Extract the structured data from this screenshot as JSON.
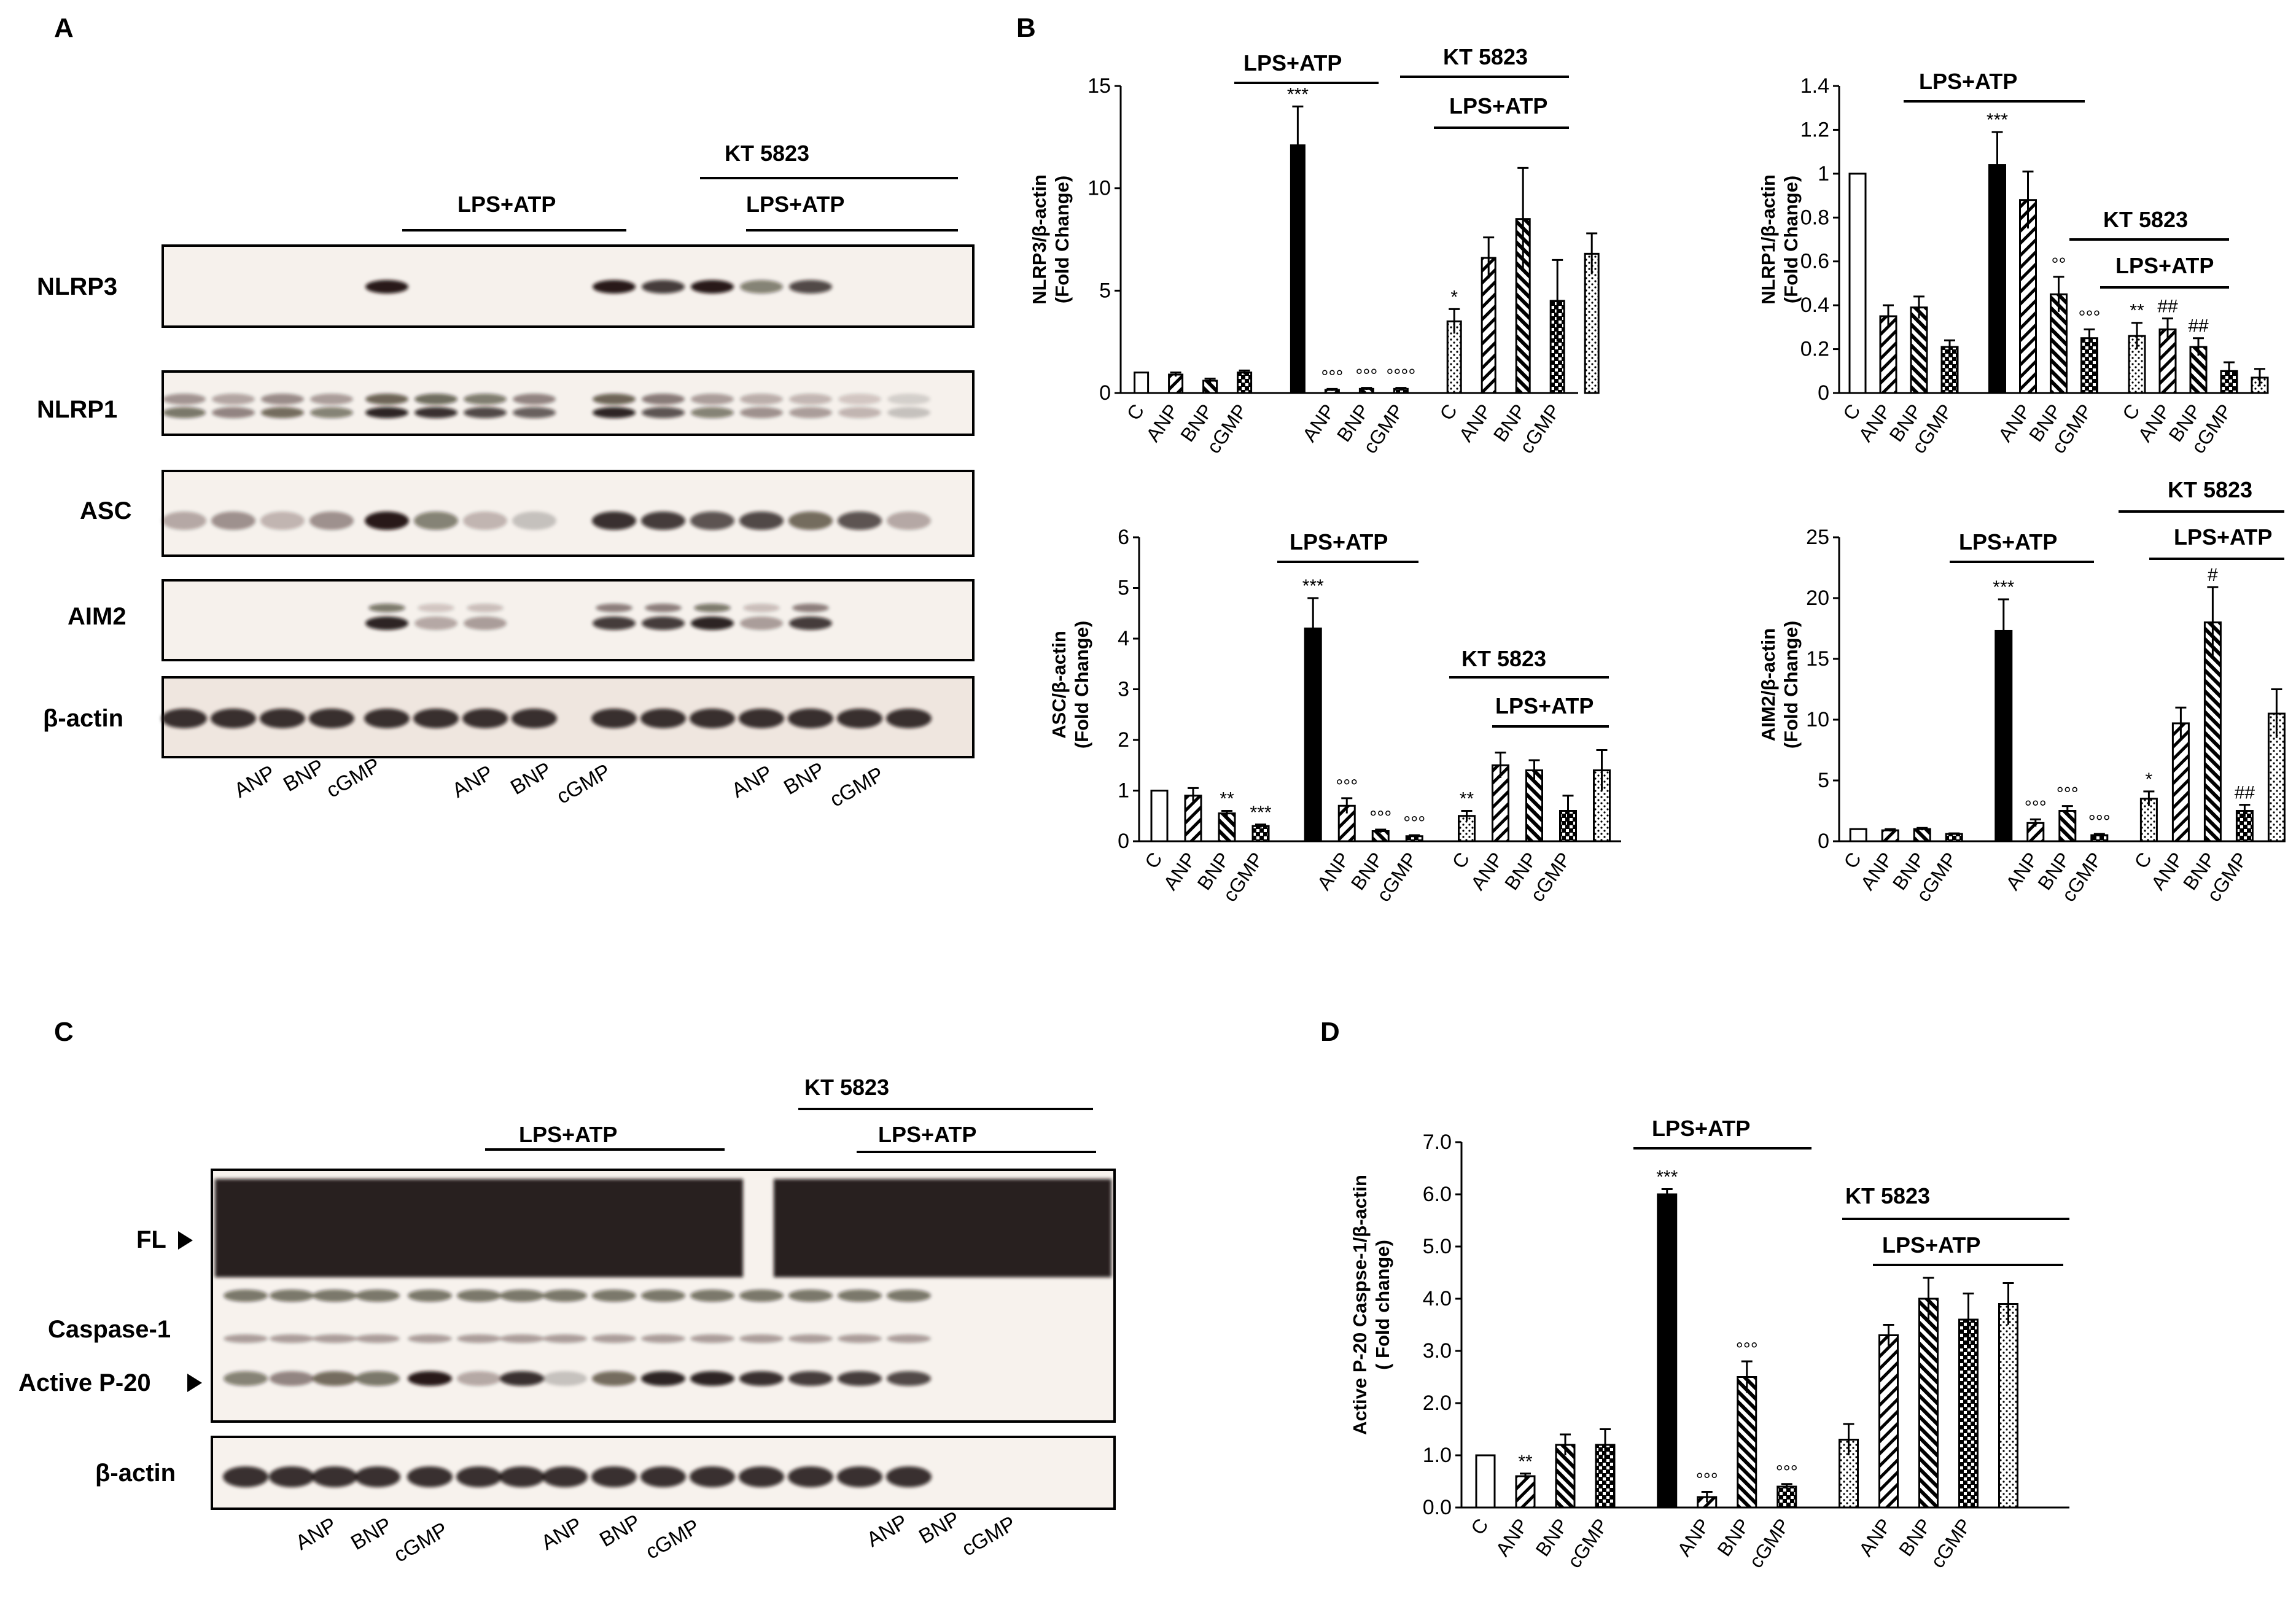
{
  "panels": {
    "A": "A",
    "B": "B",
    "C": "C",
    "D": "D"
  },
  "labels": {
    "lps_atp": "LPS+ATP",
    "kt5823": "KT 5823",
    "kt5823_wide": "KT 5823"
  },
  "blot_a": {
    "rows": [
      "NLRP3",
      "NLRP1",
      "ASC",
      "AIM2",
      "β-actin"
    ],
    "lanes": [
      "ANP",
      "BNP",
      "cGMP",
      "ANP",
      "BNP",
      "cGMP",
      "ANP",
      "BNP",
      "cGMP"
    ]
  },
  "blot_c": {
    "rows": [
      "FL",
      "Caspase-1",
      "Active P-20",
      "β-actin"
    ],
    "lanes": [
      "ANP",
      "BNP",
      "cGMP",
      "ANP",
      "BNP",
      "cGMP",
      "ANP",
      "BNP",
      "cGMP"
    ]
  },
  "chart_data": [
    {
      "type": "bar",
      "panel": "B",
      "ylabel_line1": "NLRP3/β-actin",
      "ylabel_line2": "(Fold Change)",
      "ylim": [
        0,
        15
      ],
      "yticks": [
        "0",
        "5",
        "10",
        "15"
      ],
      "categories": [
        "C",
        "ANP",
        "BNP",
        "cGMP",
        "",
        "ANP",
        "BNP",
        "cGMP",
        "C",
        "ANP",
        "BNP",
        "cGMP",
        ""
      ],
      "values": [
        1.0,
        0.9,
        0.6,
        1.0,
        12.1,
        0.15,
        0.2,
        0.2,
        3.5,
        6.6,
        8.5,
        4.5,
        6.8
      ],
      "errors": [
        0,
        0.1,
        0.1,
        0.1,
        1.9,
        0.05,
        0.05,
        0.05,
        0.6,
        1.0,
        2.5,
        2.0,
        1.0
      ],
      "sig": [
        "",
        "",
        "",
        "",
        "***",
        "°°°",
        "°°°",
        "°°°°",
        "*",
        "",
        "",
        "",
        ""
      ]
    },
    {
      "type": "bar",
      "panel": "B",
      "ylabel_line1": "NLRP1/β-actin",
      "ylabel_line2": "(Fold Change)",
      "ylim": [
        0,
        1.4
      ],
      "yticks": [
        "0",
        "0.2",
        "0.4",
        "0.6",
        "0.8",
        "1",
        "1.2",
        "1.4"
      ],
      "categories": [
        "C",
        "ANP",
        "BNP",
        "cGMP",
        "",
        "ANP",
        "BNP",
        "cGMP",
        "C",
        "ANP",
        "BNP",
        "cGMP",
        ""
      ],
      "values": [
        1.0,
        0.35,
        0.39,
        0.21,
        1.04,
        0.88,
        0.45,
        0.25,
        0.26,
        0.29,
        0.21,
        0.1,
        0.07
      ],
      "errors": [
        0,
        0.05,
        0.05,
        0.03,
        0.15,
        0.13,
        0.08,
        0.04,
        0.06,
        0.05,
        0.04,
        0.04,
        0.04
      ],
      "sig": [
        "",
        "",
        "",
        "",
        "***",
        "",
        "°°",
        "°°°",
        "**",
        "##",
        "##",
        "",
        ""
      ]
    },
    {
      "type": "bar",
      "panel": "B",
      "ylabel_line1": "ASC/β-actin",
      "ylabel_line2": "(Fold Change)",
      "ylim": [
        0,
        6
      ],
      "yticks": [
        "0",
        "1",
        "2",
        "3",
        "4",
        "5",
        "6"
      ],
      "categories": [
        "C",
        "ANP",
        "BNP",
        "cGMP",
        "",
        "ANP",
        "BNP",
        "cGMP",
        "C",
        "ANP",
        "BNP",
        "cGMP",
        ""
      ],
      "values": [
        1.0,
        0.9,
        0.55,
        0.3,
        4.2,
        0.7,
        0.2,
        0.1,
        0.5,
        1.5,
        1.4,
        0.6,
        1.4
      ],
      "errors": [
        0,
        0.15,
        0.05,
        0.03,
        0.6,
        0.15,
        0.03,
        0.02,
        0.1,
        0.25,
        0.2,
        0.3,
        0.4
      ],
      "sig": [
        "",
        "",
        "**",
        "***",
        "***",
        "°°°",
        "°°°",
        "°°°",
        "**",
        "",
        "",
        "",
        ""
      ]
    },
    {
      "type": "bar",
      "panel": "B",
      "ylabel_line1": "AIM2/β-actin",
      "ylabel_line2": "(Fold Change)",
      "ylim": [
        0,
        25
      ],
      "yticks": [
        "0",
        "5",
        "10",
        "15",
        "20",
        "25"
      ],
      "categories": [
        "C",
        "ANP",
        "BNP",
        "cGMP",
        "",
        "ANP",
        "BNP",
        "cGMP",
        "C",
        "ANP",
        "BNP",
        "cGMP",
        ""
      ],
      "values": [
        1.0,
        0.9,
        1.0,
        0.6,
        17.3,
        1.5,
        2.5,
        0.5,
        3.5,
        9.7,
        18.0,
        2.5,
        10.5
      ],
      "errors": [
        0,
        0.1,
        0.1,
        0.05,
        2.6,
        0.3,
        0.4,
        0.1,
        0.6,
        1.3,
        2.9,
        0.5,
        2.0
      ],
      "sig": [
        "",
        "",
        "",
        "",
        "***",
        "°°°",
        "°°°",
        "°°°",
        "*",
        "",
        "#",
        "##",
        ""
      ]
    },
    {
      "type": "bar",
      "panel": "D",
      "ylabel_line1": "Active P-20 Caspse-1/β-actin",
      "ylabel_line2": "( Fold change)",
      "ylim": [
        0,
        7
      ],
      "yticks": [
        "0.0",
        "1.0",
        "2.0",
        "3.0",
        "4.0",
        "5.0",
        "6.0",
        "7.0"
      ],
      "categories": [
        "C",
        "ANP",
        "BNP",
        "cGMP",
        "",
        "ANP",
        "BNP",
        "cGMP",
        "",
        "ANP",
        "BNP",
        "cGMP",
        ""
      ],
      "values": [
        1.0,
        0.6,
        1.2,
        1.2,
        6.0,
        0.2,
        2.5,
        0.4,
        1.3,
        3.3,
        4.0,
        3.6,
        3.9
      ],
      "errors": [
        0,
        0.05,
        0.2,
        0.3,
        0.1,
        0.1,
        0.3,
        0.05,
        0.3,
        0.2,
        0.4,
        0.5,
        0.4
      ],
      "sig": [
        "",
        "**",
        "",
        "",
        "***",
        "°°°",
        "°°°",
        "°°°",
        "",
        "",
        "",
        "",
        ""
      ]
    }
  ],
  "colors": {
    "black": "#000000",
    "white": "#ffffff",
    "blot_bg": "#f6f1ec"
  }
}
